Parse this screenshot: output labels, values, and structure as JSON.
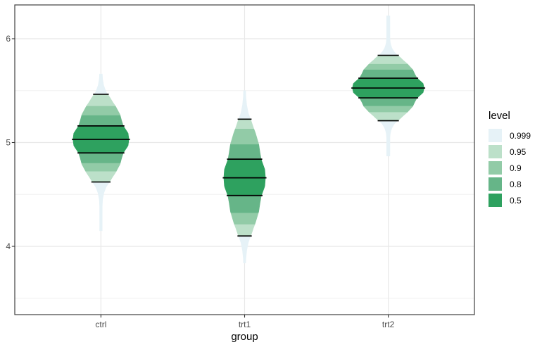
{
  "chart_data": {
    "type": "violin",
    "subtype": "gradient-eye-plot",
    "title": "",
    "xlabel": "group",
    "ylabel": "",
    "categories": [
      "ctrl",
      "trt1",
      "trt2"
    ],
    "y_ticks": [
      "4",
      "5",
      "6"
    ],
    "y_tick_values": [
      4,
      5,
      6
    ],
    "y_minor_gridlines": [
      3.5,
      4.5,
      5.5
    ],
    "ylim": [
      3.34,
      6.33
    ],
    "grid": true,
    "legend": {
      "title": "level",
      "position": "right"
    },
    "levels": [
      {
        "level": "0.999",
        "color": "#E6F2F7"
      },
      {
        "level": "0.95",
        "color": "#BCE0C9"
      },
      {
        "level": "0.9",
        "color": "#92CBA7"
      },
      {
        "level": "0.8",
        "color": "#66B588"
      },
      {
        "level": "0.5",
        "color": "#2EA15F"
      }
    ],
    "interval_lines_marked_at": [
      "median",
      "0.5 interval edges",
      "0.95 interval edges"
    ],
    "groups": [
      {
        "name": "ctrl",
        "median": 5.03,
        "intervals": {
          "0.5": [
            4.9,
            5.16
          ],
          "0.8": [
            4.8,
            5.26
          ],
          "0.9": [
            4.72,
            5.35
          ],
          "0.95": [
            4.62,
            5.465
          ],
          "0.999": [
            4.15,
            5.66
          ]
        },
        "spread_sd": 0.2,
        "relative_max_width": 0.78
      },
      {
        "name": "trt1",
        "median": 4.66,
        "intervals": {
          "0.5": [
            4.49,
            4.84
          ],
          "0.8": [
            4.32,
            4.98
          ],
          "0.9": [
            4.21,
            5.13
          ],
          "0.95": [
            4.1,
            5.225
          ],
          "0.999": [
            3.84,
            5.5
          ]
        },
        "spread_sd": 0.27,
        "relative_max_width": 0.58
      },
      {
        "name": "trt2",
        "median": 5.525,
        "intervals": {
          "0.5": [
            5.43,
            5.62
          ],
          "0.8": [
            5.35,
            5.7
          ],
          "0.9": [
            5.29,
            5.755
          ],
          "0.95": [
            5.21,
            5.84
          ],
          "0.999": [
            4.87,
            6.22
          ]
        },
        "spread_sd": 0.148,
        "relative_max_width": 1.0
      }
    ],
    "colors": {
      "panel_border": "#404040",
      "grid_major": "#E8E8E8",
      "grid_minor": "#F0F0F0",
      "axis_text": "#4D4D4D",
      "interval_line": "#000000",
      "background": "#FFFFFF"
    }
  }
}
